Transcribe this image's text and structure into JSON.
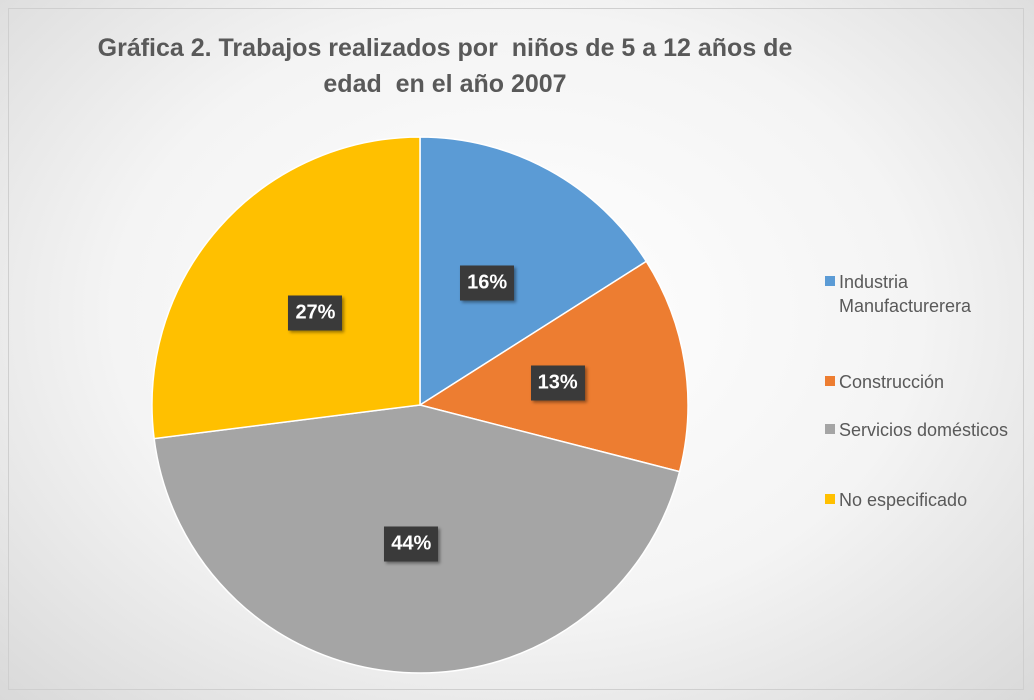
{
  "chart_data": {
    "type": "pie",
    "title": "Gráfica 2. Trabajos realizados por  niños de 5 a 12 años de edad  en el año 2007",
    "categories": [
      "Industria Manufacturerera",
      "Construcción",
      "Servicios domésticos",
      "No especificado"
    ],
    "values": [
      16,
      13,
      44,
      27
    ],
    "value_labels": [
      "16%",
      "13%",
      "44%",
      "27%"
    ],
    "colors": [
      "#5b9bd5",
      "#ed7d31",
      "#a5a5a5",
      "#ffc000"
    ],
    "legend": "right"
  }
}
